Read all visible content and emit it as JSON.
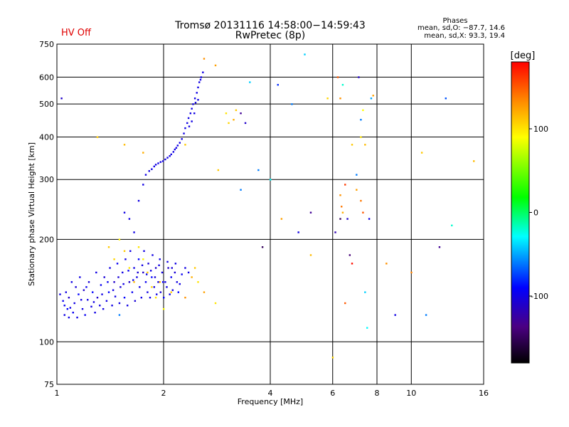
{
  "header": {
    "title_line1": "Tromsø 20131116 14:58:00−14:59:43",
    "title_line2": "RwPretec (8p)",
    "hv_status": "HV Off",
    "hv_color": "#e00000",
    "stats_title": "Phases",
    "stats_line1": "mean, sd,O: −87.7, 14.6",
    "stats_line2": "mean, sd,X:  93.3, 19.4"
  },
  "chart_data": {
    "type": "scatter",
    "xlabel": "Frequency [MHz]",
    "ylabel": "Stationary phase Virtual Height [km]",
    "x_scale": "log",
    "y_scale": "log",
    "xlim": [
      1,
      16
    ],
    "ylim": [
      75,
      750
    ],
    "x_ticks": [
      1,
      2,
      4,
      6,
      8,
      10,
      16
    ],
    "y_ticks": [
      75,
      100,
      200,
      300,
      400,
      500,
      600,
      750
    ],
    "grid": true,
    "colorbar": {
      "label": "[deg]",
      "range": [
        -180,
        180
      ],
      "ticks": [
        -100,
        0,
        100
      ]
    },
    "points": [
      [
        1.05,
        120,
        -100
      ],
      [
        1.05,
        128,
        -95
      ],
      [
        1.06,
        140,
        -100
      ],
      [
        1.07,
        125,
        -90
      ],
      [
        1.08,
        118,
        -100
      ],
      [
        1.08,
        135,
        -110
      ],
      [
        1.1,
        150,
        -100
      ],
      [
        1.11,
        122,
        -95
      ],
      [
        1.12,
        130,
        -100
      ],
      [
        1.13,
        145,
        -105
      ],
      [
        1.14,
        118,
        -100
      ],
      [
        1.15,
        138,
        -90
      ],
      [
        1.16,
        155,
        -100
      ],
      [
        1.18,
        125,
        -100
      ],
      [
        1.19,
        142,
        -110
      ],
      [
        1.2,
        120,
        -95
      ],
      [
        1.22,
        133,
        -100
      ],
      [
        1.23,
        150,
        -105
      ],
      [
        1.25,
        127,
        -100
      ],
      [
        1.26,
        140,
        -90
      ],
      [
        1.28,
        122,
        -100
      ],
      [
        1.29,
        160,
        -100
      ],
      [
        1.3,
        135,
        -110
      ],
      [
        1.32,
        128,
        -100
      ],
      [
        1.33,
        147,
        -95
      ],
      [
        1.35,
        125,
        -100
      ],
      [
        1.36,
        155,
        -105
      ],
      [
        1.38,
        132,
        -100
      ],
      [
        1.4,
        140,
        -90
      ],
      [
        1.41,
        165,
        -100
      ],
      [
        1.43,
        128,
        -100
      ],
      [
        1.45,
        150,
        -110
      ],
      [
        1.46,
        136,
        -100
      ],
      [
        1.48,
        170,
        -95
      ],
      [
        1.5,
        130,
        -100
      ],
      [
        1.51,
        145,
        -105
      ],
      [
        1.53,
        160,
        -100
      ],
      [
        1.55,
        135,
        -90
      ],
      [
        1.56,
        175,
        -100
      ],
      [
        1.58,
        128,
        -100
      ],
      [
        1.6,
        150,
        -110
      ],
      [
        1.61,
        185,
        -100
      ],
      [
        1.63,
        140,
        -95
      ],
      [
        1.65,
        165,
        -100
      ],
      [
        1.66,
        132,
        -105
      ],
      [
        1.68,
        155,
        -100
      ],
      [
        1.7,
        175,
        -90
      ],
      [
        1.71,
        145,
        -100
      ],
      [
        1.73,
        135,
        -100
      ],
      [
        1.75,
        160,
        -110
      ],
      [
        1.76,
        185,
        -100
      ],
      [
        1.78,
        150,
        -95
      ],
      [
        1.8,
        140,
        -100
      ],
      [
        1.81,
        170,
        -105
      ],
      [
        1.83,
        135,
        -100
      ],
      [
        1.85,
        155,
        -90
      ],
      [
        1.86,
        180,
        -100
      ],
      [
        1.88,
        145,
        -100
      ],
      [
        1.9,
        165,
        -110
      ],
      [
        1.91,
        138,
        -100
      ],
      [
        1.93,
        150,
        -95
      ],
      [
        1.95,
        175,
        -100
      ],
      [
        1.96,
        140,
        -105
      ],
      [
        1.98,
        160,
        -100
      ],
      [
        2.0,
        135,
        -90
      ],
      [
        2.02,
        150,
        -100
      ],
      [
        2.04,
        145,
        -100
      ],
      [
        2.06,
        165,
        -110
      ],
      [
        2.08,
        138,
        -100
      ],
      [
        2.1,
        155,
        -95
      ],
      [
        2.12,
        142,
        -100
      ],
      [
        2.15,
        160,
        -105
      ],
      [
        2.18,
        150,
        -100
      ],
      [
        2.2,
        140,
        -90
      ],
      [
        1.02,
        138,
        -100
      ],
      [
        1.04,
        132,
        -95
      ],
      [
        1.09,
        126,
        -100
      ],
      [
        1.17,
        133,
        -100
      ],
      [
        1.21,
        145,
        -95
      ],
      [
        1.27,
        131,
        -100
      ],
      [
        1.34,
        138,
        -100
      ],
      [
        1.39,
        150,
        -95
      ],
      [
        1.44,
        142,
        -100
      ],
      [
        1.49,
        155,
        -105
      ],
      [
        1.54,
        148,
        -100
      ],
      [
        1.59,
        162,
        -95
      ],
      [
        1.64,
        152,
        -100
      ],
      [
        1.69,
        160,
        -105
      ],
      [
        1.74,
        168,
        -100
      ],
      [
        1.79,
        158,
        -95
      ],
      [
        1.84,
        162,
        -100
      ],
      [
        1.89,
        155,
        -105
      ],
      [
        1.94,
        168,
        -100
      ],
      [
        1.99,
        150,
        -95
      ],
      [
        2.05,
        172,
        -100
      ],
      [
        2.11,
        165,
        -105
      ],
      [
        2.16,
        170,
        -100
      ],
      [
        2.22,
        148,
        -100
      ],
      [
        2.25,
        158,
        -95
      ],
      [
        2.3,
        165,
        -100
      ],
      [
        2.35,
        160,
        -100
      ],
      [
        1.55,
        240,
        -100
      ],
      [
        1.6,
        230,
        -100
      ],
      [
        1.65,
        210,
        -100
      ],
      [
        1.7,
        260,
        -100
      ],
      [
        1.75,
        290,
        -100
      ],
      [
        1.78,
        310,
        -100
      ],
      [
        1.82,
        318,
        -100
      ],
      [
        1.85,
        322,
        -100
      ],
      [
        1.88,
        328,
        -100
      ],
      [
        1.9,
        332,
        -100
      ],
      [
        1.93,
        335,
        -100
      ],
      [
        1.96,
        338,
        -100
      ],
      [
        1.99,
        340,
        -100
      ],
      [
        2.02,
        344,
        -100
      ],
      [
        2.05,
        348,
        -100
      ],
      [
        2.08,
        352,
        -100
      ],
      [
        2.1,
        356,
        -100
      ],
      [
        2.13,
        362,
        -100
      ],
      [
        2.15,
        368,
        -100
      ],
      [
        2.17,
        372,
        -100
      ],
      [
        2.19,
        378,
        -100
      ],
      [
        2.22,
        385,
        -100
      ],
      [
        2.25,
        395,
        -100
      ],
      [
        2.28,
        410,
        -100
      ],
      [
        2.3,
        425,
        -100
      ],
      [
        2.33,
        440,
        -100
      ],
      [
        2.35,
        455,
        -100
      ],
      [
        2.38,
        470,
        -100
      ],
      [
        2.4,
        485,
        -100
      ],
      [
        2.42,
        500,
        -100
      ],
      [
        2.45,
        520,
        -100
      ],
      [
        2.48,
        540,
        -100
      ],
      [
        2.5,
        560,
        -100
      ],
      [
        2.52,
        580,
        -100
      ],
      [
        2.55,
        600,
        -100
      ],
      [
        2.58,
        620,
        -100
      ],
      [
        2.36,
        430,
        -100
      ],
      [
        2.4,
        445,
        -100
      ],
      [
        2.44,
        470,
        -100
      ],
      [
        2.46,
        505,
        -100
      ],
      [
        2.5,
        515,
        -100
      ],
      [
        2.54,
        590,
        -100
      ],
      [
        1.4,
        190,
        110
      ],
      [
        1.45,
        175,
        105
      ],
      [
        1.5,
        200,
        95
      ],
      [
        1.55,
        185,
        110
      ],
      [
        1.6,
        165,
        100
      ],
      [
        1.65,
        150,
        115
      ],
      [
        1.7,
        190,
        100
      ],
      [
        1.75,
        175,
        95
      ],
      [
        1.8,
        160,
        110
      ],
      [
        1.85,
        145,
        105
      ],
      [
        1.9,
        135,
        100
      ],
      [
        1.95,
        150,
        120
      ],
      [
        2.0,
        125,
        90
      ],
      [
        2.1,
        140,
        110
      ],
      [
        2.3,
        135,
        130
      ],
      [
        2.4,
        155,
        120
      ],
      [
        2.45,
        165,
        110
      ],
      [
        2.5,
        150,
        100
      ],
      [
        2.6,
        140,
        125
      ],
      [
        2.8,
        130,
        100
      ],
      [
        1.3,
        400,
        110
      ],
      [
        1.55,
        380,
        115
      ],
      [
        1.75,
        360,
        120
      ],
      [
        2.3,
        380,
        110
      ],
      [
        2.6,
        680,
        130
      ],
      [
        2.8,
        650,
        125
      ],
      [
        2.85,
        320,
        110
      ],
      [
        3.0,
        470,
        100
      ],
      [
        3.05,
        440,
        105
      ],
      [
        3.15,
        450,
        120
      ],
      [
        3.2,
        480,
        110
      ],
      [
        4.3,
        230,
        125
      ],
      [
        5.2,
        180,
        115
      ],
      [
        5.8,
        520,
        105
      ],
      [
        6.3,
        520,
        130
      ],
      [
        6.8,
        380,
        110
      ],
      [
        7.2,
        400,
        100
      ],
      [
        7.3,
        480,
        90
      ],
      [
        7.4,
        380,
        115
      ],
      [
        8.5,
        170,
        130
      ],
      [
        10.0,
        160,
        135
      ],
      [
        10.7,
        360,
        110
      ],
      [
        15.0,
        340,
        115
      ],
      [
        6.0,
        90,
        105
      ],
      [
        6.5,
        130,
        150
      ],
      [
        6.3,
        270,
        130
      ],
      [
        6.35,
        250,
        140
      ],
      [
        6.4,
        240,
        120
      ],
      [
        6.5,
        290,
        160
      ],
      [
        6.8,
        170,
        175
      ],
      [
        7.2,
        260,
        140
      ],
      [
        7.3,
        240,
        150
      ],
      [
        7.8,
        530,
        125
      ],
      [
        6.2,
        600,
        150
      ],
      [
        7.0,
        280,
        125
      ],
      [
        1.03,
        520,
        -110
      ],
      [
        1.5,
        120,
        -60
      ],
      [
        3.3,
        280,
        -60
      ],
      [
        3.4,
        440,
        -110
      ],
      [
        3.5,
        580,
        -40
      ],
      [
        4.0,
        300,
        -30
      ],
      [
        4.2,
        570,
        -80
      ],
      [
        4.6,
        500,
        -60
      ],
      [
        4.8,
        210,
        -100
      ],
      [
        5.0,
        700,
        -40
      ],
      [
        5.2,
        240,
        -130
      ],
      [
        6.1,
        210,
        -120
      ],
      [
        6.3,
        230,
        -150
      ],
      [
        6.4,
        570,
        -20
      ],
      [
        6.6,
        230,
        -110
      ],
      [
        6.7,
        180,
        -140
      ],
      [
        7.0,
        310,
        -60
      ],
      [
        7.1,
        600,
        -110
      ],
      [
        7.2,
        450,
        -60
      ],
      [
        7.4,
        140,
        -40
      ],
      [
        7.5,
        110,
        -30
      ],
      [
        7.6,
        230,
        -100
      ],
      [
        7.7,
        520,
        -50
      ],
      [
        9.0,
        120,
        -100
      ],
      [
        11.0,
        120,
        -60
      ],
      [
        12.0,
        190,
        -130
      ],
      [
        12.5,
        520,
        -70
      ],
      [
        13.0,
        220,
        -20
      ],
      [
        3.8,
        190,
        -150
      ],
      [
        3.3,
        470,
        -130
      ],
      [
        3.7,
        320,
        -60
      ]
    ]
  }
}
